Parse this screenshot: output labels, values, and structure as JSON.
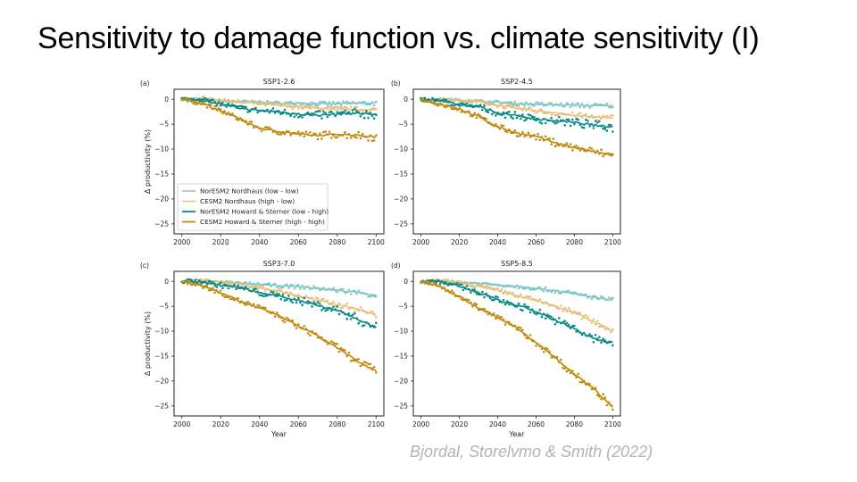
{
  "slide": {
    "title": "Sensitivity to damage function vs. climate sensitivity (I)",
    "citation": "Bjordal, Storelvmo & Smith (2022)"
  },
  "chart_data": [
    {
      "type": "line",
      "panel": "(a)",
      "title": "SSP1-2.6",
      "xlabel": "",
      "ylabel": "Δ productivity (%)",
      "xlim": [
        1996,
        2104
      ],
      "ylim": [
        -27,
        2
      ],
      "xticks": [
        2000,
        2020,
        2040,
        2060,
        2080,
        2100
      ],
      "yticks": [
        0,
        -5,
        -10,
        -15,
        -20,
        -25
      ],
      "legend": "lower-left",
      "x": [
        2000,
        2010,
        2020,
        2030,
        2040,
        2050,
        2060,
        2070,
        2080,
        2090,
        2100
      ],
      "series": [
        {
          "name": "NorESM2 Nordhaus (low - low)",
          "color": "#7fc6c6",
          "values": [
            0,
            0,
            -0.3,
            -0.5,
            -0.6,
            -0.8,
            -0.8,
            -0.9,
            -0.9,
            -0.8,
            -0.8
          ]
        },
        {
          "name": "CESM2 Nordhaus (high - low)",
          "color": "#e6c07c",
          "values": [
            0,
            0.3,
            -0.3,
            -0.6,
            -0.9,
            -1.2,
            -1.5,
            -1.8,
            -2.0,
            -2.1,
            -2.1
          ]
        },
        {
          "name": "NorESM2 Howard & Sterner (low - high)",
          "color": "#0a8a84",
          "values": [
            0,
            0,
            -1.0,
            -1.8,
            -2.3,
            -2.5,
            -3.0,
            -3.2,
            -3.0,
            -2.8,
            -3.0
          ]
        },
        {
          "name": "CESM2 Howard & Sterner (high - high)",
          "color": "#c28a10",
          "values": [
            0,
            -0.8,
            -2.3,
            -4.0,
            -5.8,
            -6.5,
            -7.0,
            -7.3,
            -7.0,
            -7.2,
            -7.6
          ]
        }
      ]
    },
    {
      "type": "line",
      "panel": "(b)",
      "title": "SSP2-4.5",
      "xlabel": "",
      "ylabel": "",
      "xlim": [
        1996,
        2104
      ],
      "ylim": [
        -27,
        2
      ],
      "xticks": [
        2000,
        2020,
        2040,
        2060,
        2080,
        2100
      ],
      "yticks": [
        0,
        -5,
        -10,
        -15,
        -20,
        -25
      ],
      "x": [
        2000,
        2010,
        2020,
        2030,
        2040,
        2050,
        2060,
        2070,
        2080,
        2090,
        2100
      ],
      "series": [
        {
          "name": "NorESM2 Nordhaus (low - low)",
          "color": "#7fc6c6",
          "values": [
            0,
            0,
            -0.2,
            -0.4,
            -0.6,
            -0.9,
            -1.0,
            -1.1,
            -1.2,
            -1.3,
            -1.3
          ]
        },
        {
          "name": "CESM2 Nordhaus (high - low)",
          "color": "#e6c07c",
          "values": [
            0,
            0,
            -0.3,
            -0.5,
            -1.2,
            -1.8,
            -2.3,
            -2.8,
            -3.2,
            -3.6,
            -3.8
          ]
        },
        {
          "name": "NorESM2 Howard & Sterner (low - high)",
          "color": "#0a8a84",
          "values": [
            0,
            -0.2,
            -1.2,
            -1.5,
            -2.8,
            -3.3,
            -4.0,
            -4.3,
            -4.7,
            -5.2,
            -5.6
          ]
        },
        {
          "name": "CESM2 Howard & Sterner (high - high)",
          "color": "#c28a10",
          "values": [
            0,
            -1.0,
            -2.0,
            -3.5,
            -5.5,
            -6.8,
            -7.5,
            -8.7,
            -9.7,
            -10.5,
            -11.3
          ]
        }
      ]
    },
    {
      "type": "line",
      "panel": "(c)",
      "title": "SSP3-7.0",
      "xlabel": "Year",
      "ylabel": "Δ productivity (%)",
      "xlim": [
        1996,
        2104
      ],
      "ylim": [
        -27,
        2
      ],
      "xticks": [
        2000,
        2020,
        2040,
        2060,
        2080,
        2100
      ],
      "yticks": [
        0,
        -5,
        -10,
        -15,
        -20,
        -25
      ],
      "x": [
        2000,
        2010,
        2020,
        2030,
        2040,
        2050,
        2060,
        2070,
        2080,
        2090,
        2100
      ],
      "series": [
        {
          "name": "NorESM2 Nordhaus (low - low)",
          "color": "#7fc6c6",
          "values": [
            0,
            0,
            -0.2,
            -0.4,
            -0.6,
            -0.9,
            -1.1,
            -1.4,
            -1.8,
            -2.2,
            -2.8
          ]
        },
        {
          "name": "CESM2 Nordhaus (high - low)",
          "color": "#e6c07c",
          "values": [
            0,
            0.2,
            -0.3,
            -0.6,
            -1.3,
            -2.0,
            -2.9,
            -3.8,
            -4.6,
            -5.5,
            -6.8
          ]
        },
        {
          "name": "NorESM2 Howard & Sterner (low - high)",
          "color": "#0a8a84",
          "values": [
            0,
            0,
            -0.8,
            -1.3,
            -2.3,
            -3.0,
            -3.8,
            -4.8,
            -5.8,
            -7.5,
            -9.3
          ]
        },
        {
          "name": "CESM2 Howard & Sterner (high - high)",
          "color": "#c28a10",
          "values": [
            0,
            -0.8,
            -2.3,
            -4.0,
            -5.3,
            -7.0,
            -9.0,
            -11.0,
            -13.3,
            -16.0,
            -18.0
          ]
        }
      ]
    },
    {
      "type": "line",
      "panel": "(d)",
      "title": "SSP5-8.5",
      "xlabel": "Year",
      "ylabel": "",
      "xlim": [
        1996,
        2104
      ],
      "ylim": [
        -27,
        2
      ],
      "xticks": [
        2000,
        2020,
        2040,
        2060,
        2080,
        2100
      ],
      "yticks": [
        0,
        -5,
        -10,
        -15,
        -20,
        -25
      ],
      "x": [
        2000,
        2010,
        2020,
        2030,
        2040,
        2050,
        2060,
        2070,
        2080,
        2090,
        2100
      ],
      "series": [
        {
          "name": "NorESM2 Nordhaus (low - low)",
          "color": "#7fc6c6",
          "values": [
            0,
            0,
            -0.2,
            -0.4,
            -0.7,
            -1.0,
            -1.4,
            -1.9,
            -2.5,
            -3.2,
            -3.8
          ]
        },
        {
          "name": "CESM2 Nordhaus (high - low)",
          "color": "#e6c07c",
          "values": [
            0,
            0.2,
            -0.3,
            -1.0,
            -1.8,
            -2.8,
            -3.8,
            -5.0,
            -6.3,
            -8.0,
            -10.0
          ]
        },
        {
          "name": "NorESM2 Howard & Sterner (low - high)",
          "color": "#0a8a84",
          "values": [
            0,
            0,
            -1.0,
            -2.2,
            -3.8,
            -4.8,
            -6.0,
            -7.8,
            -9.5,
            -11.5,
            -12.4
          ]
        },
        {
          "name": "CESM2 Howard & Sterner (high - high)",
          "color": "#c28a10",
          "values": [
            0,
            -1.0,
            -3.0,
            -5.3,
            -7.3,
            -9.3,
            -12.3,
            -15.3,
            -18.7,
            -21.5,
            -25.2
          ]
        }
      ]
    }
  ]
}
